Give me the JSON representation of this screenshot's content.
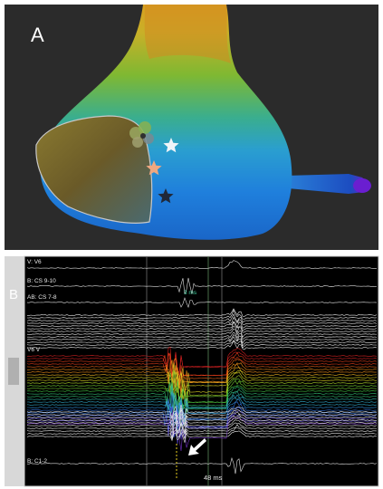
{
  "panel_a": {
    "label": "A"
  },
  "panel_b": {
    "label": "B",
    "channels": [
      "V: V6",
      "B: CS 9-10",
      "AB: CS 7-8",
      "V6 V",
      "B: C1-2"
    ],
    "annotations": {
      "interval_small": "3 ms",
      "interval": "48 ms"
    }
  }
}
